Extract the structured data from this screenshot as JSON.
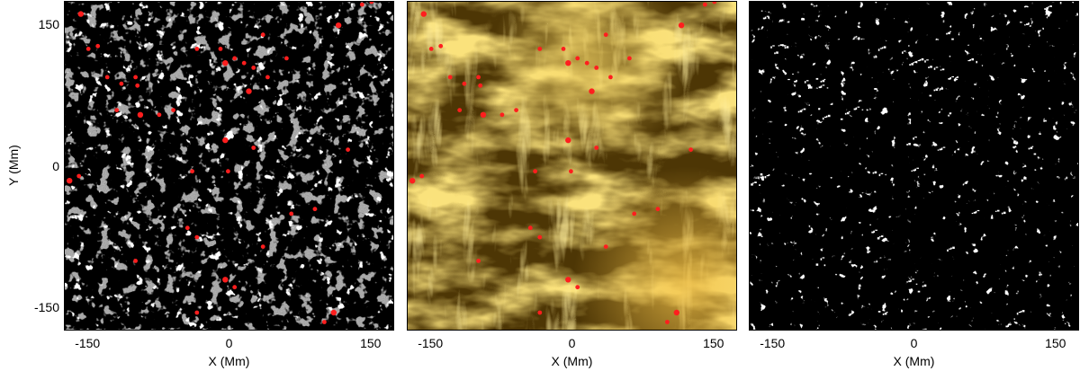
{
  "figure": {
    "axes": {
      "x_label": "X (Mm)",
      "y_label": "Y (Mm)",
      "x_range": [
        -175,
        175
      ],
      "y_range": [
        -175,
        175
      ],
      "x_ticks": [
        "-150",
        "0",
        "150"
      ],
      "y_ticks": [
        "150",
        "0",
        "-150"
      ],
      "x_tick_values": [
        -150,
        0,
        150
      ],
      "y_tick_values": [
        150,
        0,
        -150
      ]
    },
    "panels": [
      {
        "id": "magnetogram",
        "content": "grayscale magnetogram with red markers"
      },
      {
        "id": "euv",
        "content": "golden coronal EUV image with red markers"
      },
      {
        "id": "mask",
        "content": "black background with white detected features"
      }
    ],
    "colors": {
      "marker": "#ff1e1e",
      "magnetogram_bg": "#8a8a8a",
      "euv_dark": "#2a1d03",
      "euv_bright": "#f5c53a",
      "mask_bg": "#000000",
      "mask_features": "#ffffff"
    },
    "markers": [
      [
        -158,
        162
      ],
      [
        -140,
        128
      ],
      [
        -115,
        88
      ],
      [
        -98,
        86
      ],
      [
        -75,
        55
      ],
      [
        -95,
        55
      ],
      [
        -60,
        60
      ],
      [
        -100,
        95
      ],
      [
        -35,
        125
      ],
      [
        -10,
        125
      ],
      [
        -5,
        110
      ],
      [
        15,
        110
      ],
      [
        25,
        105
      ],
      [
        35,
        140
      ],
      [
        60,
        115
      ],
      [
        115,
        150
      ],
      [
        140,
        172
      ],
      [
        150,
        175
      ],
      [
        -130,
        95
      ],
      [
        -120,
        60
      ],
      [
        -5,
        28
      ],
      [
        25,
        20
      ],
      [
        125,
        18
      ],
      [
        -40,
        -5
      ],
      [
        -2,
        -5
      ],
      [
        -170,
        -15
      ],
      [
        -160,
        -10
      ],
      [
        -45,
        -65
      ],
      [
        -35,
        -75
      ],
      [
        -100,
        -100
      ],
      [
        -5,
        -120
      ],
      [
        5,
        -128
      ],
      [
        35,
        -85
      ],
      [
        65,
        -50
      ],
      [
        90,
        -45
      ],
      [
        110,
        -155
      ],
      [
        100,
        -165
      ],
      [
        -35,
        -155
      ],
      [
        -150,
        125
      ],
      [
        40,
        95
      ],
      [
        20,
        80
      ],
      [
        5,
        115
      ]
    ]
  }
}
